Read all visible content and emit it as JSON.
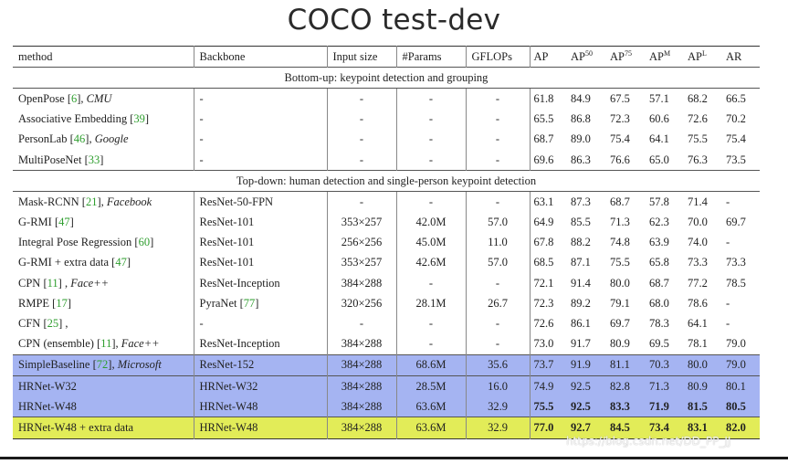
{
  "title": "COCO test-dev",
  "headers": {
    "method": "method",
    "backbone": "Backbone",
    "input": "Input size",
    "params": "#Params",
    "gflops": "GFLOPs",
    "ap": "AP",
    "ap50": "AP",
    "ap50_sup": "50",
    "ap75": "AP",
    "ap75_sup": "75",
    "apm": "AP",
    "apm_sup": "M",
    "apl": "AP",
    "apl_sup": "L",
    "ar": "AR"
  },
  "sections": [
    {
      "label": "Bottom-up: keypoint detection and grouping",
      "rows": [
        {
          "name": "OpenPose",
          "ref": "6",
          "suffix": ", ",
          "org": "CMU",
          "backbone": "-",
          "input": "-",
          "params": "-",
          "gflops": "-",
          "ap": "61.8",
          "ap50": "84.9",
          "ap75": "67.5",
          "apm": "57.1",
          "apl": "68.2",
          "ar": "66.5"
        },
        {
          "name": "Associative Embedding",
          "ref": "39",
          "suffix": "",
          "org": "",
          "backbone": "-",
          "input": "-",
          "params": "-",
          "gflops": "-",
          "ap": "65.5",
          "ap50": "86.8",
          "ap75": "72.3",
          "apm": "60.6",
          "apl": "72.6",
          "ar": "70.2"
        },
        {
          "name": "PersonLab",
          "ref": "46",
          "suffix": ", ",
          "org": "Google",
          "backbone": "-",
          "input": "-",
          "params": "-",
          "gflops": "-",
          "ap": "68.7",
          "ap50": "89.0",
          "ap75": "75.4",
          "apm": "64.1",
          "apl": "75.5",
          "ar": "75.4"
        },
        {
          "name": "MultiPoseNet",
          "ref": "33",
          "suffix": "",
          "org": "",
          "backbone": "-",
          "input": "-",
          "params": "-",
          "gflops": "-",
          "ap": "69.6",
          "ap50": "86.3",
          "ap75": "76.6",
          "apm": "65.0",
          "apl": "76.3",
          "ar": "73.5"
        }
      ]
    },
    {
      "label": "Top-down: human detection and single-person keypoint detection",
      "rows": [
        {
          "name": "Mask-RCNN",
          "ref": "21",
          "suffix": ", ",
          "org": "Facebook",
          "backbone": "ResNet-50-FPN",
          "input": "-",
          "params": "-",
          "gflops": "-",
          "ap": "63.1",
          "ap50": "87.3",
          "ap75": "68.7",
          "apm": "57.8",
          "apl": "71.4",
          "ar": "-"
        },
        {
          "name": "G-RMI",
          "ref": "47",
          "suffix": "",
          "org": "",
          "backbone": "ResNet-101",
          "input": "353×257",
          "params": "42.0M",
          "gflops": "57.0",
          "ap": "64.9",
          "ap50": "85.5",
          "ap75": "71.3",
          "apm": "62.3",
          "apl": "70.0",
          "ar": "69.7"
        },
        {
          "name": "Integral Pose Regression",
          "ref": "60",
          "suffix": "",
          "org": "",
          "backbone": "ResNet-101",
          "input": "256×256",
          "params": "45.0M",
          "gflops": "11.0",
          "ap": "67.8",
          "ap50": "88.2",
          "ap75": "74.8",
          "apm": "63.9",
          "apl": "74.0",
          "ar": "-"
        },
        {
          "name": "G-RMI + extra data",
          "ref": "47",
          "suffix": "",
          "org": "",
          "backbone": "ResNet-101",
          "input": "353×257",
          "params": "42.6M",
          "gflops": "57.0",
          "ap": "68.5",
          "ap50": "87.1",
          "ap75": "75.5",
          "apm": "65.8",
          "apl": "73.3",
          "ar": "73.3"
        },
        {
          "name": "CPN",
          "ref": "11",
          "suffix": " , ",
          "org": "Face++",
          "backbone": "ResNet-Inception",
          "input": "384×288",
          "params": "-",
          "gflops": "-",
          "ap": "72.1",
          "ap50": "91.4",
          "ap75": "80.0",
          "apm": "68.7",
          "apl": "77.2",
          "ar": "78.5"
        },
        {
          "name": "RMPE",
          "ref": "17",
          "suffix": "",
          "org": "",
          "backbone": "PyraNet",
          "backbone_ref": "77",
          "input": "320×256",
          "params": "28.1M",
          "gflops": "26.7",
          "ap": "72.3",
          "ap50": "89.2",
          "ap75": "79.1",
          "apm": "68.0",
          "apl": "78.6",
          "ar": "-"
        },
        {
          "name": "CFN",
          "ref": "25",
          "suffix": " ,",
          "org": "",
          "backbone": "-",
          "input": "-",
          "params": "-",
          "gflops": "-",
          "ap": "72.6",
          "ap50": "86.1",
          "ap75": "69.7",
          "apm": "78.3",
          "apl": "64.1",
          "ar": "-"
        },
        {
          "name": "CPN (ensemble)",
          "ref": "11",
          "suffix": ", ",
          "org": "Face++",
          "backbone": "ResNet-Inception",
          "input": "384×288",
          "params": "-",
          "gflops": "-",
          "ap": "73.0",
          "ap50": "91.7",
          "ap75": "80.9",
          "apm": "69.5",
          "apl": "78.1",
          "ar": "79.0"
        },
        {
          "name": "SimpleBaseline",
          "ref": "72",
          "suffix": ", ",
          "org": "Microsoft",
          "backbone": "ResNet-152",
          "input": "384×288",
          "params": "68.6M",
          "gflops": "35.6",
          "ap": "73.7",
          "ap50": "91.9",
          "ap75": "81.1",
          "apm": "70.3",
          "apl": "80.0",
          "ar": "79.0",
          "hl": "blue",
          "group": true
        },
        {
          "name": "HRNet-W32",
          "ref": "",
          "suffix": "",
          "org": "",
          "backbone": "HRNet-W32",
          "input": "384×288",
          "params": "28.5M",
          "gflops": "16.0",
          "ap": "74.9",
          "ap50": "92.5",
          "ap75": "82.8",
          "apm": "71.3",
          "apl": "80.9",
          "ar": "80.1",
          "hl": "blue",
          "group": true
        },
        {
          "name": "HRNet-W48",
          "ref": "",
          "suffix": "",
          "org": "",
          "backbone": "HRNet-W48",
          "input": "384×288",
          "params": "63.6M",
          "gflops": "32.9",
          "ap": "75.5",
          "ap50": "92.5",
          "ap75": "83.3",
          "apm": "71.9",
          "apl": "81.5",
          "ar": "80.5",
          "hl": "blue",
          "bold": true
        },
        {
          "name": "HRNet-W48 + extra data",
          "ref": "",
          "suffix": "",
          "org": "",
          "backbone": "HRNet-W48",
          "input": "384×288",
          "params": "63.6M",
          "gflops": "32.9",
          "ap": "77.0",
          "ap50": "92.7",
          "ap75": "84.5",
          "apm": "73.4",
          "apl": "83.1",
          "ar": "82.0",
          "hl": "yellow",
          "bold": true,
          "group": true
        }
      ]
    }
  ],
  "watermark": "https://blog.csdn.net/DD_PP_JJ"
}
